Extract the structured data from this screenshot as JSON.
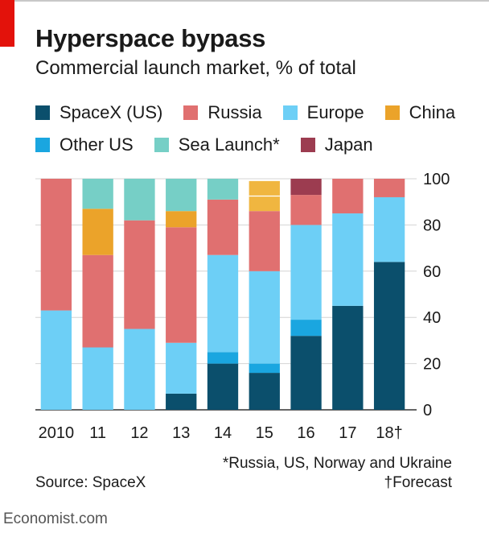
{
  "title": "Hyperspace bypass",
  "subtitle": "Commercial launch market, % of total",
  "legend": [
    {
      "label": "SpaceX (US)",
      "color": "#0b4f6c"
    },
    {
      "label": "Russia",
      "color": "#e07070"
    },
    {
      "label": "Europe",
      "color": "#6dcff6"
    },
    {
      "label": "China",
      "color": "#eba32a"
    },
    {
      "label": "Other US",
      "color": "#1aa6e0"
    },
    {
      "label": "Sea Launch*",
      "color": "#76cfc6"
    },
    {
      "label": "Japan",
      "color": "#9c3c50"
    }
  ],
  "chart_data": {
    "type": "bar",
    "stacked": true,
    "title": "Hyperspace bypass",
    "subtitle": "Commercial launch market, % of total",
    "categories": [
      "2010",
      "11",
      "12",
      "13",
      "14",
      "15",
      "16",
      "17",
      "18†"
    ],
    "series": [
      {
        "name": "SpaceX (US)",
        "color": "#0b4f6c",
        "values": [
          0,
          0,
          0,
          7,
          20,
          16,
          32,
          45,
          64
        ]
      },
      {
        "name": "Other US",
        "color": "#1aa6e0",
        "values": [
          0,
          0,
          0,
          0,
          5,
          4,
          7,
          0,
          0
        ]
      },
      {
        "name": "Europe",
        "color": "#6dcff6",
        "values": [
          43,
          27,
          35,
          22,
          42,
          40,
          41,
          40,
          28
        ]
      },
      {
        "name": "Russia",
        "color": "#e07070",
        "values": [
          57,
          40,
          47,
          50,
          24,
          26,
          13,
          15,
          8
        ]
      },
      {
        "name": "China",
        "color": "#eba32a",
        "values": [
          0,
          20,
          0,
          7,
          0,
          13,
          0,
          0,
          0
        ]
      },
      {
        "name": "Sea Launch*",
        "color": "#76cfc6",
        "values": [
          0,
          13,
          18,
          14,
          9,
          0,
          0,
          0,
          0
        ]
      },
      {
        "name": "Japan",
        "color": "#9c3c50",
        "values": [
          0,
          0,
          0,
          0,
          0,
          0,
          7,
          0,
          0
        ]
      }
    ],
    "highlight_segments": [
      {
        "series": "China",
        "category": "15",
        "color": "#f0b640"
      }
    ],
    "yticks": [
      0,
      20,
      40,
      60,
      80,
      100
    ],
    "ylim": [
      0,
      100
    ],
    "y_axis_side": "right",
    "grid": true
  },
  "footnotes": {
    "sea_launch": "*Russia, US, Norway and Ukraine",
    "forecast": "†Forecast"
  },
  "source": "Source: SpaceX",
  "brand": "Economist.com"
}
